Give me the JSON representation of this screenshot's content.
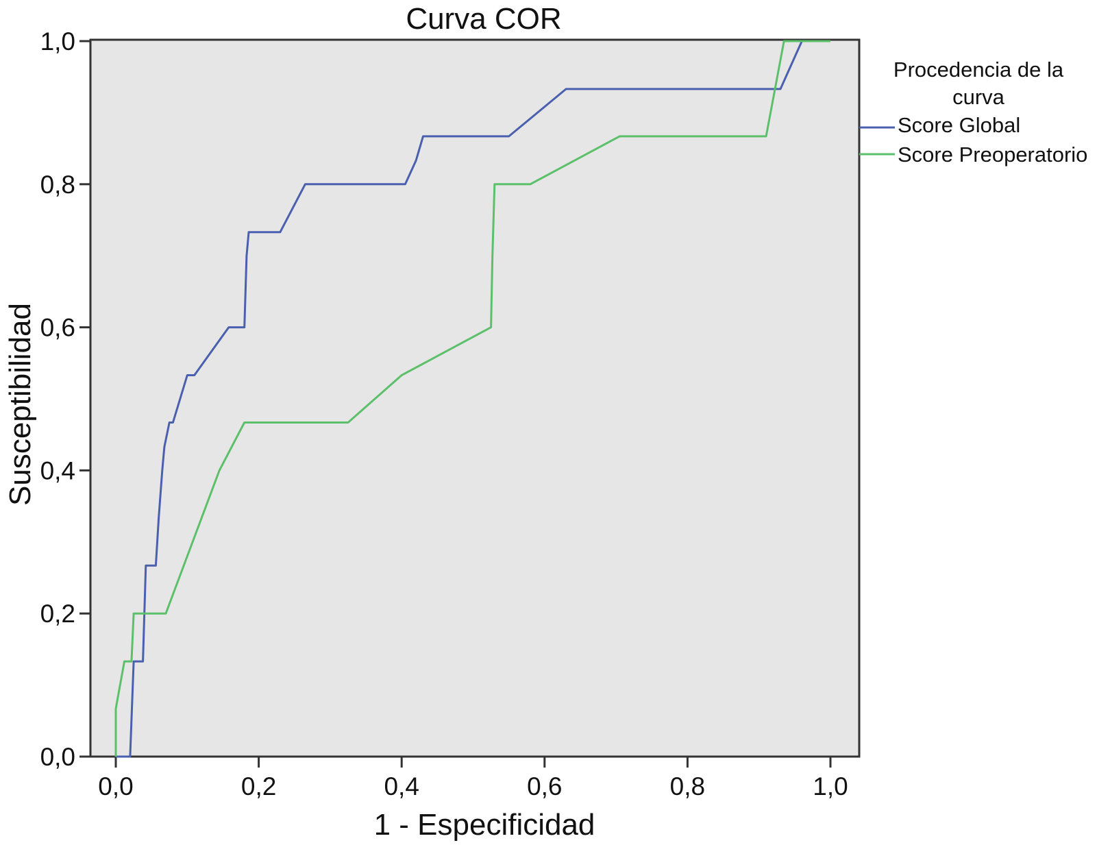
{
  "chart_data": {
    "type": "line",
    "title": "Curva COR",
    "xlabel": "1 - Especificidad",
    "ylabel": "Susceptibilidad",
    "xlim": [
      0,
      1
    ],
    "ylim": [
      0,
      1
    ],
    "x_ticks": [
      "0,0",
      "0,2",
      "0,4",
      "0,6",
      "0,8",
      "1,0"
    ],
    "y_ticks": [
      "0,0",
      "0,2",
      "0,4",
      "0,6",
      "0,8",
      "1,0"
    ],
    "grid": false,
    "plot_background": "#e6e6e6",
    "legend": {
      "title_line1": "Procedencia de la",
      "title_line2": "curva",
      "placement": "right"
    },
    "series": [
      {
        "name": "Score Global",
        "color": "#4a5fae",
        "x": [
          0.0,
          0.02,
          0.025,
          0.038,
          0.04,
          0.042,
          0.056,
          0.06,
          0.065,
          0.068,
          0.075,
          0.08,
          0.1,
          0.11,
          0.158,
          0.18,
          0.183,
          0.186,
          0.23,
          0.265,
          0.405,
          0.42,
          0.43,
          0.55,
          0.63,
          0.93,
          0.96,
          1.0
        ],
        "y": [
          0.0,
          0.0,
          0.133,
          0.133,
          0.2,
          0.267,
          0.267,
          0.333,
          0.4,
          0.433,
          0.467,
          0.467,
          0.533,
          0.533,
          0.6,
          0.6,
          0.7,
          0.733,
          0.733,
          0.8,
          0.8,
          0.833,
          0.867,
          0.867,
          0.933,
          0.933,
          1.0,
          1.0
        ]
      },
      {
        "name": "Score Preoperatorio",
        "color": "#5cc06b",
        "x": [
          0.0,
          0.0,
          0.012,
          0.022,
          0.025,
          0.065,
          0.07,
          0.145,
          0.18,
          0.325,
          0.4,
          0.525,
          0.527,
          0.53,
          0.58,
          0.705,
          0.91,
          0.935,
          1.0
        ],
        "y": [
          0.0,
          0.067,
          0.133,
          0.133,
          0.2,
          0.2,
          0.2,
          0.4,
          0.467,
          0.467,
          0.533,
          0.6,
          0.7,
          0.8,
          0.8,
          0.867,
          0.867,
          1.0,
          1.0
        ]
      }
    ]
  }
}
